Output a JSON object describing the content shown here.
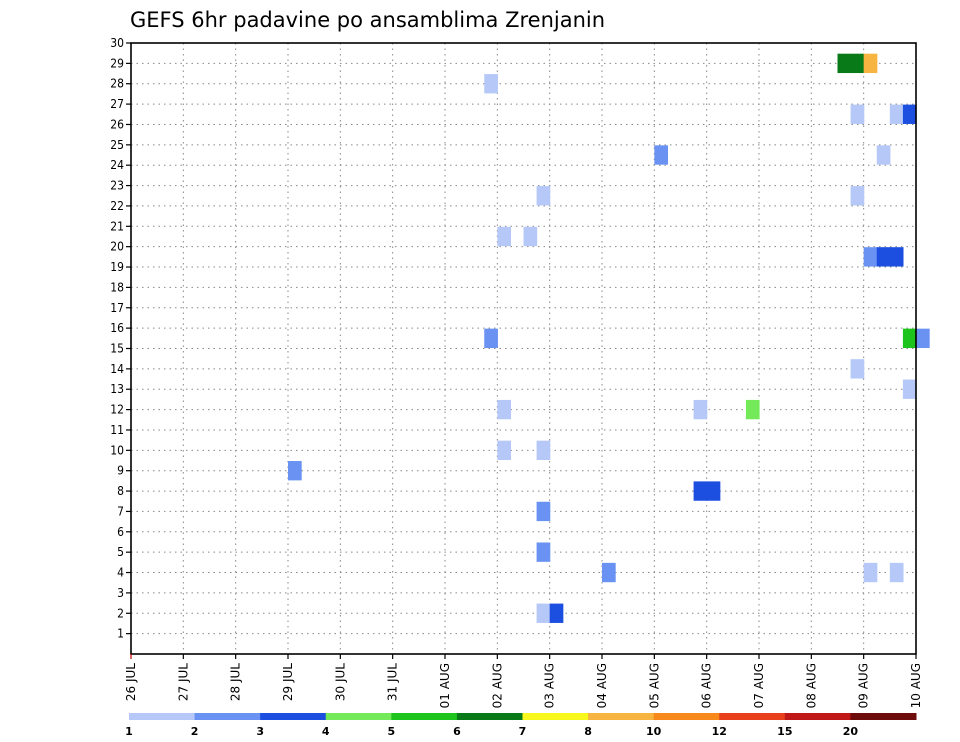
{
  "chart_data": {
    "type": "heatmap",
    "title": "GEFS 6hr padavine po ansamblima Zrenjanin",
    "xlabel": "",
    "ylabel": "",
    "x_ticks": [
      "26 JUL",
      "27 JUL",
      "28 JUL",
      "29 JUL",
      "30 JUL",
      "31 JUL",
      "01 AUG",
      "02 AUG",
      "03 AUG",
      "04 AUG",
      "05 AUG",
      "06 AUG",
      "07 AUG",
      "08 AUG",
      "09 AUG",
      "10 AUG"
    ],
    "y_ticks": [
      "1",
      "2",
      "3",
      "4",
      "5",
      "6",
      "7",
      "8",
      "9",
      "10",
      "11",
      "12",
      "13",
      "14",
      "15",
      "16",
      "17",
      "18",
      "19",
      "20",
      "21",
      "22",
      "23",
      "24",
      "25",
      "26",
      "27",
      "28",
      "29",
      "30"
    ],
    "xlim_days": [
      0,
      15
    ],
    "ylim": [
      0,
      30
    ],
    "grid": true,
    "colorbar": {
      "labels": [
        "1",
        "2",
        "3",
        "4",
        "5",
        "6",
        "7",
        "8",
        "10",
        "12",
        "15",
        "20"
      ],
      "colors": [
        "#b5c8f8",
        "#6a92f2",
        "#1c4fe0",
        "#74ea5a",
        "#1cc41c",
        "#087a18",
        "#f8f81c",
        "#f8b440",
        "#f88a1c",
        "#e8401c",
        "#c01818",
        "#6e0c0c"
      ]
    },
    "cells": [
      {
        "member": 2,
        "day": 7.75,
        "value": 1.5
      },
      {
        "member": 2,
        "day": 8.0,
        "value": 3.5
      },
      {
        "member": 4,
        "day": 9.0,
        "value": 2.5
      },
      {
        "member": 4,
        "day": 14.0,
        "value": 1.5
      },
      {
        "member": 4,
        "day": 14.5,
        "value": 1.5
      },
      {
        "member": 5,
        "day": 7.75,
        "value": 2.5
      },
      {
        "member": 7,
        "day": 7.75,
        "value": 2.5
      },
      {
        "member": 8,
        "day": 10.75,
        "value": 3.5
      },
      {
        "member": 8,
        "day": 11.0,
        "value": 3.5
      },
      {
        "member": 9,
        "day": 3.0,
        "value": 2.5
      },
      {
        "member": 10,
        "day": 7.0,
        "value": 1.5
      },
      {
        "member": 10,
        "day": 7.75,
        "value": 1.5
      },
      {
        "member": 12,
        "day": 7.0,
        "value": 1.5
      },
      {
        "member": 12,
        "day": 10.75,
        "value": 1.5
      },
      {
        "member": 12,
        "day": 11.75,
        "value": 4.5
      },
      {
        "member": 13,
        "day": 14.75,
        "value": 1.5
      },
      {
        "member": 14,
        "day": 13.75,
        "value": 1.5
      },
      {
        "member": 15.5,
        "day": 6.75,
        "value": 2.5
      },
      {
        "member": 15.5,
        "day": 14.75,
        "value": 5.5
      },
      {
        "member": 15.5,
        "day": 15.0,
        "value": 2.5
      },
      {
        "member": 19.5,
        "day": 14.0,
        "value": 2.5
      },
      {
        "member": 19.5,
        "day": 14.25,
        "value": 3.5
      },
      {
        "member": 19.5,
        "day": 14.5,
        "value": 3.5
      },
      {
        "member": 20.5,
        "day": 7.0,
        "value": 1.5
      },
      {
        "member": 20.5,
        "day": 7.5,
        "value": 1.5
      },
      {
        "member": 22.5,
        "day": 7.75,
        "value": 1.5
      },
      {
        "member": 22.5,
        "day": 13.75,
        "value": 1.5
      },
      {
        "member": 24.5,
        "day": 10.0,
        "value": 2.5
      },
      {
        "member": 24.5,
        "day": 14.25,
        "value": 1.5
      },
      {
        "member": 26.5,
        "day": 13.75,
        "value": 1.5
      },
      {
        "member": 26.5,
        "day": 14.5,
        "value": 1.5
      },
      {
        "member": 26.5,
        "day": 14.75,
        "value": 3.5
      },
      {
        "member": 28.0,
        "day": 6.75,
        "value": 1.5
      },
      {
        "member": 29.0,
        "day": 13.5,
        "value": 6.5
      },
      {
        "member": 29.0,
        "day": 13.75,
        "value": 6.5
      },
      {
        "member": 29.0,
        "day": 14.0,
        "value": 8.5
      }
    ]
  }
}
